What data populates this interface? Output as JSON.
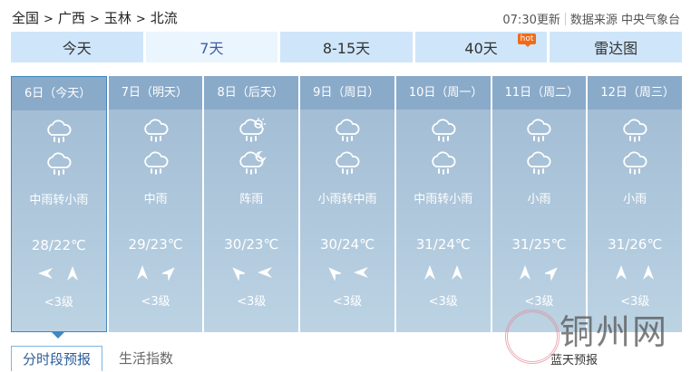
{
  "breadcrumb": [
    "全国",
    "广西",
    "玉林",
    "北流"
  ],
  "breadcrumb_sep": ">",
  "update": "07:30更新",
  "source": "数据来源 中央气象台",
  "tabs": [
    {
      "label": "今天"
    },
    {
      "label": "7天",
      "active": true
    },
    {
      "label": "8-15天"
    },
    {
      "label": "40天",
      "badge": "hot"
    },
    {
      "label": "雷达图"
    }
  ],
  "days": [
    {
      "date": "6日（今天）",
      "icons": [
        "rain",
        "rain"
      ],
      "desc": "中雨转小雨",
      "temp": "28/22℃",
      "wind": [
        -90,
        0
      ],
      "level": "<3级",
      "active": true
    },
    {
      "date": "7日（明天）",
      "icons": [
        "rain",
        "rain"
      ],
      "desc": "中雨",
      "temp": "29/23℃",
      "wind": [
        0,
        45
      ],
      "level": "<3级"
    },
    {
      "date": "8日（后天）",
      "icons": [
        "shower-day",
        "shower-night"
      ],
      "desc": "阵雨",
      "temp": "30/23℃",
      "wind": [
        -45,
        -90
      ],
      "level": "<3级"
    },
    {
      "date": "9日（周日）",
      "icons": [
        "rain",
        "rain"
      ],
      "desc": "小雨转中雨",
      "temp": "30/24℃",
      "wind": [
        -45,
        -90
      ],
      "level": "<3级"
    },
    {
      "date": "10日（周一）",
      "icons": [
        "rain",
        "rain"
      ],
      "desc": "中雨转小雨",
      "temp": "31/24℃",
      "wind": [
        0,
        0
      ],
      "level": "<3级"
    },
    {
      "date": "11日（周二）",
      "icons": [
        "rain",
        "rain"
      ],
      "desc": "小雨",
      "temp": "31/25℃",
      "wind": [
        0,
        45
      ],
      "level": "<3级"
    },
    {
      "date": "12日（周三）",
      "icons": [
        "rain",
        "rain"
      ],
      "desc": "小雨",
      "temp": "31/26℃",
      "wind": [
        0,
        0
      ],
      "level": "<3级"
    }
  ],
  "subtabs": [
    "分时段预报",
    "生活指数",
    "蓝天预报"
  ],
  "watermark": "铜州网",
  "colors": {
    "active_tab_text": "#3b5fa8",
    "tab_bg": "#cfe6fa",
    "day_header": "#8aaac9",
    "hot": "#f26a17"
  }
}
